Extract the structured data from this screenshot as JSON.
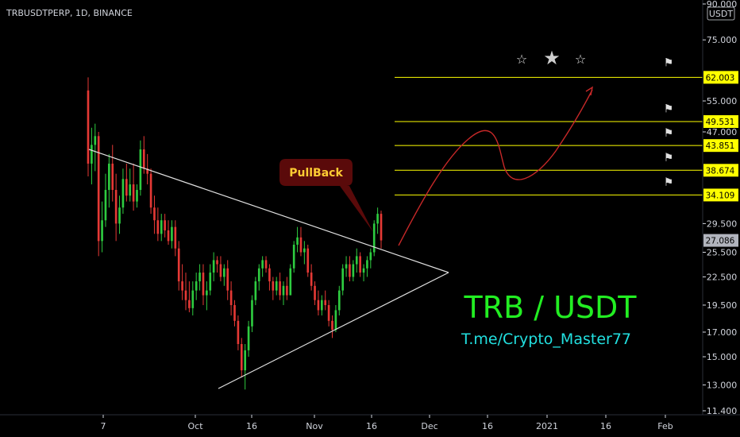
{
  "header": {
    "title": "TRBUSDTPERP, 1D, BINANCE",
    "currency": "USDT"
  },
  "colors": {
    "background": "#000000",
    "up": "#26a69a",
    "up_bright": "#2ecc40",
    "down": "#e53935",
    "level": "#ffff00",
    "trend": "#e0e0e0",
    "arrow": "#c62828",
    "big_text": "#22ee22",
    "handle_text": "#22e0e0",
    "pullback_bg": "#5a0a0a",
    "pullback_text": "#ffcc33",
    "price_label_bg": "#b2b5be"
  },
  "chart_data": {
    "type": "candlestick",
    "ylim": [
      11.4,
      90.0
    ],
    "y_scale": "log",
    "y_ticks": [
      "90.000",
      "75.000",
      "62.003",
      "55.000",
      "49.531",
      "47.000",
      "43.851",
      "38.674",
      "34.109",
      "29.500",
      "27.086",
      "25.500",
      "22.500",
      "19.500",
      "17.000",
      "15.000",
      "13.000",
      "11.400"
    ],
    "x_ticks": [
      "7",
      "Oct",
      "16",
      "Nov",
      "16",
      "Dec",
      "16",
      "2021",
      "16",
      "Feb"
    ],
    "levels": [
      62.003,
      49.531,
      43.851,
      38.674,
      34.109
    ],
    "current_price": "27.086",
    "annotations": {
      "pullback_label": "PullBack",
      "pair_label": "TRB / USDT",
      "handle_label": "T.me/Crypto_Master77"
    },
    "candles": [
      [
        58,
        62,
        37.5,
        40
      ],
      [
        40,
        48,
        36,
        44
      ],
      [
        44,
        49,
        38.5,
        46
      ],
      [
        46,
        47,
        25,
        27
      ],
      [
        27,
        33,
        25.5,
        30
      ],
      [
        30,
        38,
        29,
        35
      ],
      [
        35,
        42,
        32,
        40
      ],
      [
        40,
        44,
        33,
        35
      ],
      [
        35,
        38,
        27,
        29.5
      ],
      [
        29.5,
        34,
        28,
        32
      ],
      [
        32,
        39,
        31,
        37
      ],
      [
        37,
        40,
        33,
        34
      ],
      [
        34,
        39,
        33,
        36
      ],
      [
        36,
        40,
        31.5,
        33
      ],
      [
        33,
        36,
        32,
        35
      ],
      [
        35,
        45,
        34,
        43
      ],
      [
        43,
        46,
        38,
        39
      ],
      [
        39,
        42,
        36,
        38
      ],
      [
        38,
        39,
        31,
        32
      ],
      [
        32,
        34,
        28,
        30
      ],
      [
        30,
        32,
        27,
        28
      ],
      [
        28,
        31,
        27,
        30
      ],
      [
        30,
        31,
        27.5,
        28.5
      ],
      [
        28.5,
        30,
        26.5,
        27
      ],
      [
        27,
        30,
        26,
        29
      ],
      [
        29,
        30,
        25,
        26
      ],
      [
        26,
        27,
        21,
        22
      ],
      [
        22,
        24,
        20,
        21
      ],
      [
        21,
        23,
        19,
        20
      ],
      [
        20,
        22,
        18.8,
        19.2
      ],
      [
        19.2,
        22,
        18.5,
        21
      ],
      [
        21,
        23,
        20,
        22
      ],
      [
        22,
        24,
        21,
        23
      ],
      [
        23,
        24,
        19.5,
        20.5
      ],
      [
        20.5,
        22,
        19,
        21
      ],
      [
        21,
        24,
        20.5,
        23
      ],
      [
        23,
        25.5,
        22,
        24.5
      ],
      [
        24.5,
        25,
        23,
        24
      ],
      [
        24,
        25,
        22,
        22.5
      ],
      [
        22.5,
        24,
        21.5,
        23.5
      ],
      [
        23.5,
        24.5,
        20,
        21
      ],
      [
        21,
        22,
        18.5,
        19.5
      ],
      [
        19.5,
        20,
        17.5,
        18
      ],
      [
        18,
        18.5,
        15.5,
        16
      ],
      [
        16,
        16.5,
        13.5,
        14
      ],
      [
        14,
        16,
        12.7,
        15.5
      ],
      [
        15.5,
        18,
        15,
        17.5
      ],
      [
        17.5,
        20.5,
        17,
        20
      ],
      [
        20,
        22.5,
        19.5,
        22
      ],
      [
        22,
        24,
        21,
        23.5
      ],
      [
        23.5,
        25,
        22.5,
        24.5
      ],
      [
        24.5,
        25,
        23,
        23.5
      ],
      [
        23.5,
        24,
        21,
        22
      ],
      [
        22,
        22.5,
        20,
        21
      ],
      [
        21,
        22.5,
        20.5,
        22
      ],
      [
        22,
        23,
        20,
        20.5
      ],
      [
        20.5,
        22,
        19.5,
        21.5
      ],
      [
        21.5,
        22.5,
        20,
        20.5
      ],
      [
        20.5,
        24,
        20.5,
        23.5
      ],
      [
        23.5,
        27,
        23,
        26.5
      ],
      [
        26.5,
        29,
        25.5,
        27.5
      ],
      [
        27.5,
        29,
        25,
        25.5
      ],
      [
        25.5,
        27,
        24,
        26
      ],
      [
        26,
        26.5,
        22.5,
        23
      ],
      [
        23,
        24,
        21,
        21.5
      ],
      [
        21.5,
        22,
        19.5,
        20
      ],
      [
        20,
        21,
        18.5,
        19
      ],
      [
        19,
        20.5,
        18.5,
        20
      ],
      [
        20,
        21,
        19,
        19.5
      ],
      [
        19.5,
        20,
        17.5,
        18
      ],
      [
        18,
        18.5,
        16.5,
        17.2
      ],
      [
        17.2,
        19.5,
        17,
        19
      ],
      [
        19,
        21.5,
        18.5,
        21
      ],
      [
        21,
        24,
        20.5,
        23.5
      ],
      [
        23.5,
        25,
        22.5,
        24
      ],
      [
        24,
        25,
        22,
        22.5
      ],
      [
        22.5,
        24.5,
        22,
        24
      ],
      [
        24,
        26,
        23,
        25
      ],
      [
        25,
        25.5,
        22.5,
        23
      ],
      [
        23,
        24,
        22,
        23.5
      ],
      [
        23.5,
        25,
        22.5,
        24.5
      ],
      [
        24.5,
        26,
        23.5,
        25.5
      ],
      [
        25.5,
        30,
        25,
        29.5
      ],
      [
        29.5,
        32,
        28,
        31
      ],
      [
        31,
        31.5,
        26,
        27.086
      ]
    ]
  }
}
